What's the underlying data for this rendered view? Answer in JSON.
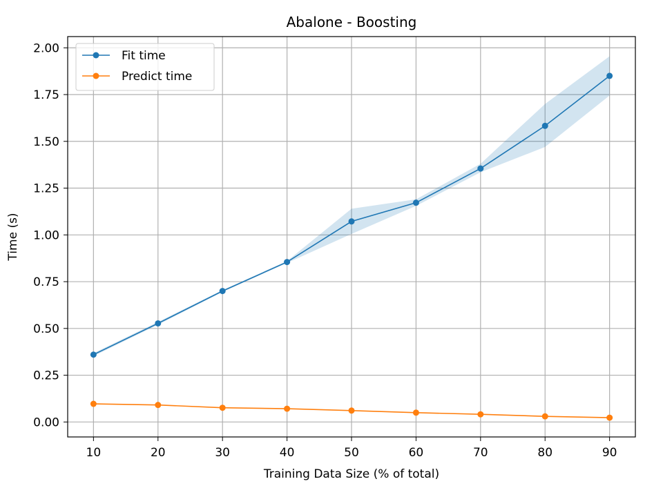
{
  "chart_data": {
    "type": "line",
    "title": "Abalone - Boosting",
    "xlabel": "Training Data Size (% of total)",
    "ylabel": "Time (s)",
    "x": [
      10,
      20,
      30,
      40,
      50,
      60,
      70,
      80,
      90
    ],
    "xlim": [
      6,
      94
    ],
    "ylim": [
      -0.08,
      2.06
    ],
    "xticks": [
      10,
      20,
      30,
      40,
      50,
      60,
      70,
      80,
      90
    ],
    "yticks": [
      0.0,
      0.25,
      0.5,
      0.75,
      1.0,
      1.25,
      1.5,
      1.75,
      2.0
    ],
    "xtick_labels": [
      "10",
      "20",
      "30",
      "40",
      "50",
      "60",
      "70",
      "80",
      "90"
    ],
    "ytick_labels": [
      "0.00",
      "0.25",
      "0.50",
      "0.75",
      "1.00",
      "1.25",
      "1.50",
      "1.75",
      "2.00"
    ],
    "grid": true,
    "legend_position": "top-left",
    "series": [
      {
        "name": "Fit time",
        "color": "#1f77b4",
        "values": [
          0.36,
          0.527,
          0.7,
          0.855,
          1.072,
          1.172,
          1.355,
          1.583,
          1.85
        ],
        "band_lower": [
          0.352,
          0.52,
          0.695,
          0.85,
          1.005,
          1.155,
          1.335,
          1.47,
          1.745
        ],
        "band_upper": [
          0.368,
          0.535,
          0.705,
          0.86,
          1.14,
          1.19,
          1.38,
          1.7,
          1.955
        ],
        "band_color": "#1f77b4"
      },
      {
        "name": "Predict time",
        "color": "#ff7f0e",
        "values": [
          0.097,
          0.091,
          0.076,
          0.071,
          0.061,
          0.05,
          0.041,
          0.03,
          0.023
        ]
      }
    ]
  }
}
